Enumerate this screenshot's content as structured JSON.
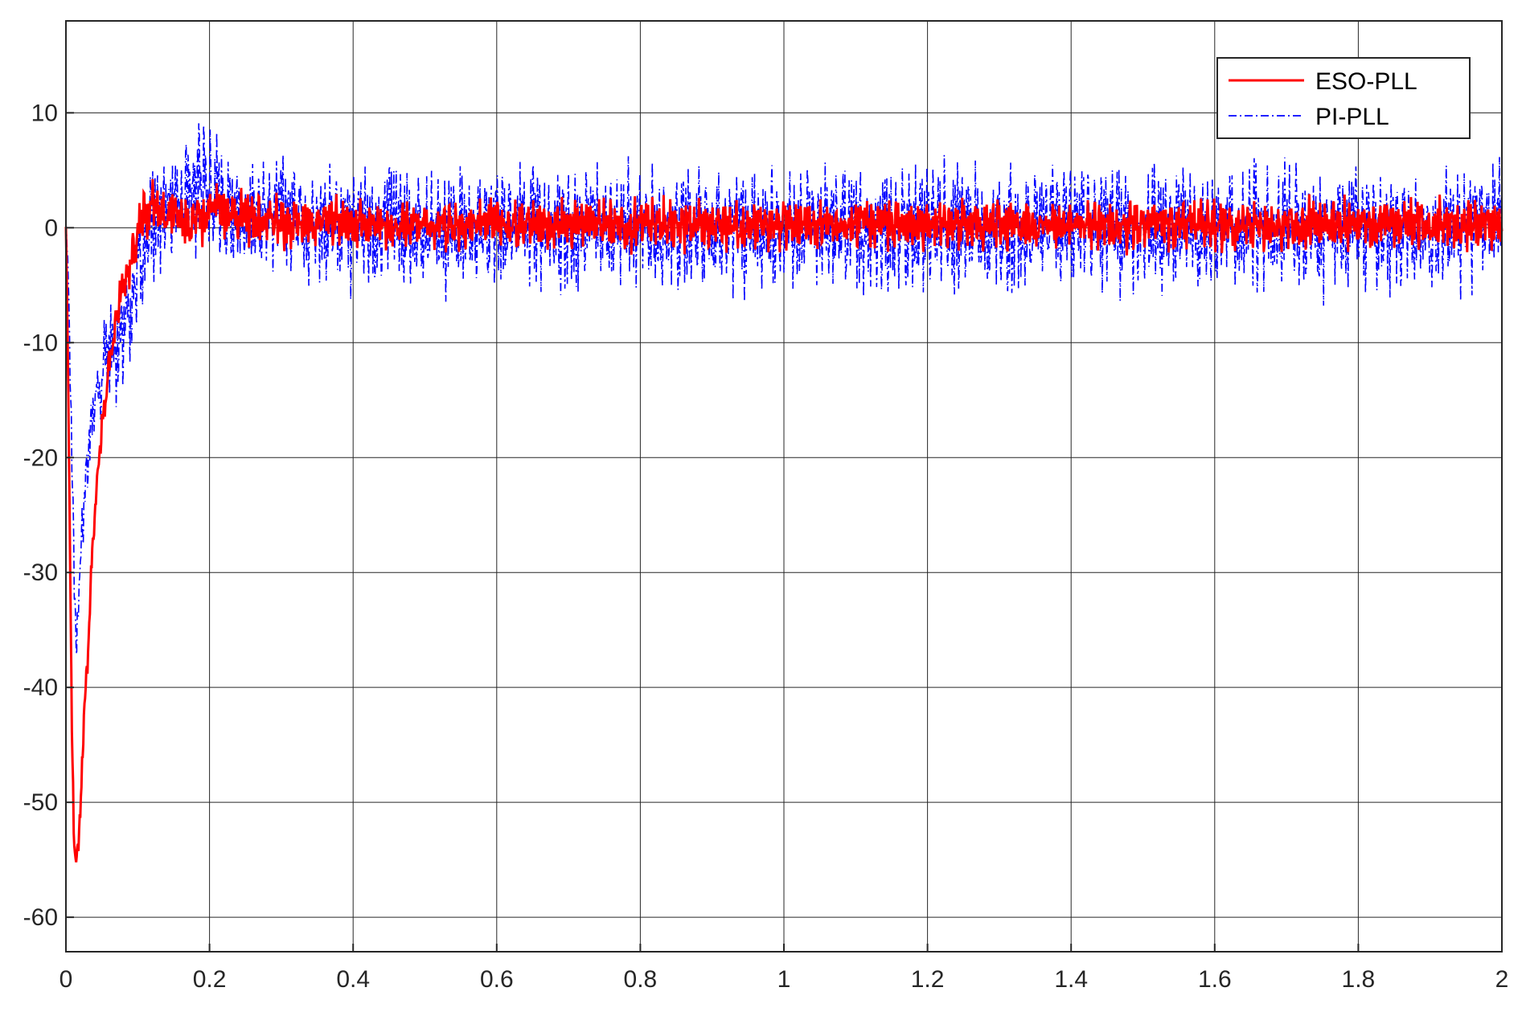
{
  "chart_data": {
    "type": "line",
    "title": "",
    "xlabel": "",
    "ylabel": "",
    "xlim": [
      0,
      2
    ],
    "ylim": [
      -63,
      18
    ],
    "xticks": [
      0,
      0.2,
      0.4,
      0.6,
      0.8,
      1,
      1.2,
      1.4,
      1.6,
      1.8,
      2
    ],
    "xtick_labels": [
      "0",
      "0.2",
      "0.4",
      "0.6",
      "0.8",
      "1",
      "1.2",
      "1.4",
      "1.6",
      "1.8",
      "2"
    ],
    "yticks": [
      10,
      0,
      -10,
      -20,
      -30,
      -40,
      -50,
      -60
    ],
    "ytick_labels": [
      "10",
      "0",
      "-10",
      "-20",
      "-30",
      "-40",
      "-50",
      "-60"
    ],
    "grid": true,
    "legend_position": "top-right",
    "series": [
      {
        "name": "ESO-PLL",
        "color": "#ff0000",
        "style": "solid",
        "x": [
          0,
          0.002,
          0.005,
          0.008,
          0.011,
          0.014,
          0.017,
          0.02,
          0.024,
          0.028,
          0.032,
          0.036,
          0.04,
          0.045,
          0.05,
          0.055,
          0.06,
          0.065,
          0.07,
          0.075,
          0.08,
          0.085,
          0.09,
          0.095,
          0.1,
          0.105,
          0.11,
          0.115,
          0.12,
          0.13,
          0.14,
          0.15,
          0.16,
          0.17,
          0.18,
          0.19,
          0.2,
          0.25,
          0.3,
          0.35,
          0.4,
          0.45,
          0.5,
          0.55,
          0.6,
          0.65,
          0.7,
          0.75,
          0.8,
          0.85,
          0.9,
          0.95,
          1.0,
          1.05,
          1.1,
          1.15,
          1.2,
          1.25,
          1.3,
          1.35,
          1.4,
          1.45,
          1.5,
          1.55,
          1.6,
          1.65,
          1.7,
          1.75,
          1.8,
          1.85,
          1.9,
          1.95,
          2.0
        ],
        "y": [
          0,
          -8,
          -24,
          -42,
          -53,
          -55,
          -54,
          -51,
          -44,
          -40,
          -35,
          -29,
          -25,
          -21,
          -17,
          -15,
          -12,
          -10,
          -8,
          -6,
          -5,
          -4,
          -3,
          -2,
          -1,
          0.5,
          1.5,
          1,
          2.5,
          1.5,
          0.5,
          1.8,
          1,
          0.2,
          1.4,
          0.6,
          1.6,
          0.9,
          0.3,
          0.7,
          0.5,
          0.2,
          0.4,
          0.3,
          0.5,
          0.2,
          0.3,
          0.4,
          0.2,
          0.3,
          0.4,
          0.2,
          0.3,
          0.3,
          0.2,
          0.4,
          0.3,
          0.2,
          0.3,
          0.4,
          0.2,
          0.3,
          0.2,
          0.4,
          0.3,
          0.2,
          0.3,
          0.4,
          0.2,
          0.3,
          0.4,
          0.2,
          0.3
        ],
        "approx_noise_amplitude": 1.8
      },
      {
        "name": "PI-PLL",
        "color": "#0000ff",
        "style": "dashdot",
        "x": [
          0,
          0.003,
          0.006,
          0.009,
          0.012,
          0.015,
          0.018,
          0.021,
          0.025,
          0.03,
          0.035,
          0.04,
          0.045,
          0.05,
          0.055,
          0.06,
          0.065,
          0.07,
          0.075,
          0.08,
          0.085,
          0.09,
          0.095,
          0.1,
          0.11,
          0.12,
          0.13,
          0.15,
          0.17,
          0.19,
          0.2,
          0.22,
          0.25,
          0.3,
          0.35,
          0.4,
          0.45,
          0.5,
          0.55,
          0.6,
          0.65,
          0.7,
          0.75,
          0.8,
          0.85,
          0.9,
          0.95,
          1.0,
          1.05,
          1.1,
          1.15,
          1.2,
          1.25,
          1.3,
          1.35,
          1.4,
          1.45,
          1.5,
          1.55,
          1.6,
          1.65,
          1.7,
          1.75,
          1.8,
          1.85,
          1.9,
          1.95,
          2.0
        ],
        "y": [
          0,
          -4,
          -12,
          -22,
          -32,
          -36,
          -33,
          -27,
          -24,
          -20,
          -17,
          -16,
          -13,
          -14,
          -10,
          -12,
          -9,
          -13,
          -8,
          -10,
          -6,
          -8,
          -4,
          -3,
          -1,
          0.5,
          1,
          2,
          3,
          4,
          3,
          2,
          1.5,
          1,
          0.5,
          0.2,
          0.3,
          0,
          -0.2,
          0.1,
          0,
          -0.2,
          0.1,
          0,
          -0.1,
          0.2,
          0,
          -0.2,
          0.1,
          0,
          -0.1,
          0.2,
          0,
          -0.2,
          0.1,
          0,
          -0.1,
          0.2,
          0,
          -0.2,
          0.1,
          0,
          -0.1,
          0.2,
          0,
          -0.2,
          0.1,
          0
        ],
        "approx_noise_amplitude": 4.5
      }
    ]
  }
}
